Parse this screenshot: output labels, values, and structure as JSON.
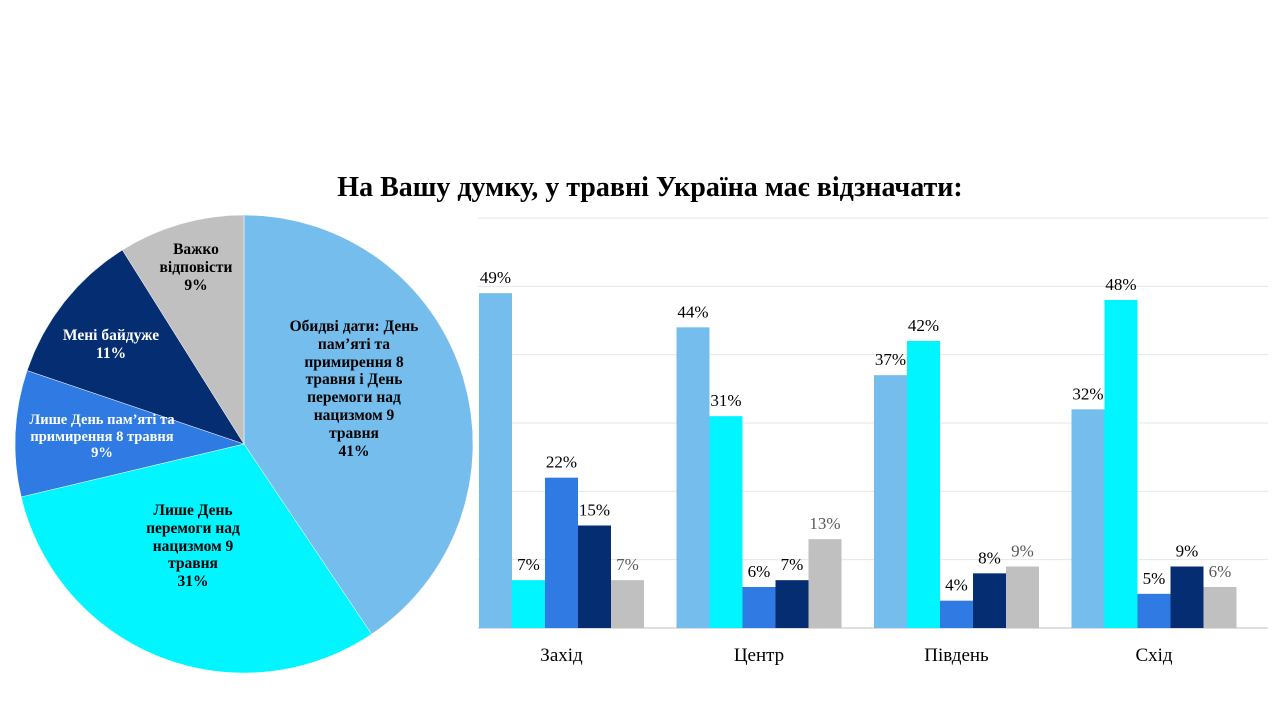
{
  "title": "На Вашу думку, у травні Україна має відзначати:",
  "chart_data": [
    {
      "type": "pie",
      "slices": [
        {
          "label_lines": [
            "Обидві дати: День",
            "пам’яті та",
            "примирення 8",
            "травня і День",
            "перемоги над",
            "нацизмом 9",
            "травня"
          ],
          "value": 41,
          "value_label": "41%",
          "color": "#74BDED"
        },
        {
          "label_lines": [
            "Лише День",
            "перемоги над",
            "нацизмом 9",
            "травня"
          ],
          "value": 31,
          "value_label": "31%",
          "color": "#00F5FF"
        },
        {
          "label_lines": [
            "Лише День пам’яті та",
            "примирення 8 травня"
          ],
          "value": 9,
          "value_label": "9%",
          "color": "#2F7BE3"
        },
        {
          "label_lines": [
            "Мені байдуже"
          ],
          "value": 11,
          "value_label": "11%",
          "color": "#042D72"
        },
        {
          "label_lines": [
            "Важко",
            "відповісти"
          ],
          "value": 9,
          "value_label": "9%",
          "color": "#C0C0C0"
        }
      ]
    },
    {
      "type": "bar",
      "categories": [
        "Захід",
        "Центр",
        "Південь",
        "Схід"
      ],
      "ylim": [
        0,
        60
      ],
      "grid": true,
      "series": [
        {
          "color": "#74BDED",
          "values": [
            49,
            44,
            37,
            32
          ],
          "labels": [
            "49%",
            "44%",
            "37%",
            "32%"
          ]
        },
        {
          "color": "#00F5FF",
          "values": [
            7,
            31,
            42,
            48
          ],
          "labels": [
            "7%",
            "31%",
            "42%",
            "48%"
          ]
        },
        {
          "color": "#2F7BE3",
          "values": [
            22,
            6,
            4,
            5
          ],
          "labels": [
            "22%",
            "6%",
            "4%",
            "5%"
          ]
        },
        {
          "color": "#042D72",
          "values": [
            15,
            7,
            8,
            9
          ],
          "labels": [
            "15%",
            "7%",
            "8%",
            "9%"
          ]
        },
        {
          "color": "#C0C0C0",
          "values": [
            7,
            13,
            9,
            6
          ],
          "labels": [
            "7%",
            "13%",
            "9%",
            "6%"
          ]
        }
      ]
    }
  ]
}
